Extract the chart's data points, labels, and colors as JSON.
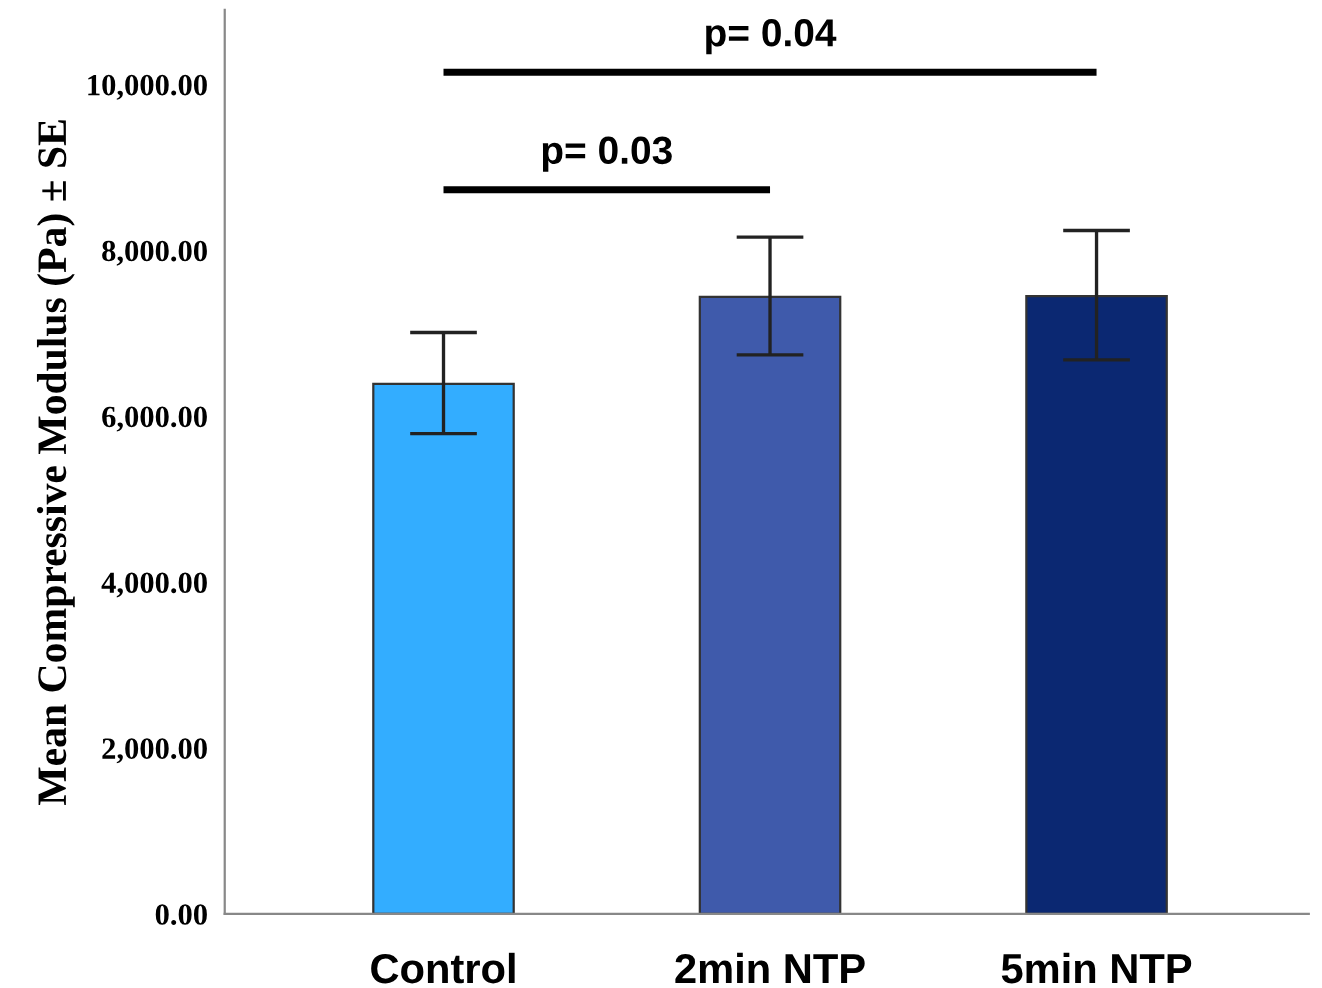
{
  "chart_data": {
    "type": "bar",
    "categories": [
      "Control",
      "2min NTP",
      "5min NTP"
    ],
    "values": [
      6390,
      7440,
      7450
    ],
    "colors": [
      "#33adff",
      "#3f5aab",
      "#0b2872"
    ],
    "errors": [
      [
        5790,
        7010
      ],
      [
        6740,
        8160
      ],
      [
        6680,
        8240
      ]
    ],
    "ylabel": "Mean Compressive Modulus (Pa) ± SE",
    "ylim": [
      0,
      10900
    ],
    "yticks": [
      {
        "value": 0,
        "label": "0.00"
      },
      {
        "value": 2000,
        "label": "2,000.00"
      },
      {
        "value": 4000,
        "label": "4,000.00"
      },
      {
        "value": 6000,
        "label": "6,000.00"
      },
      {
        "value": 8000,
        "label": "8,000.00"
      },
      {
        "value": 10000,
        "label": "10,000.00"
      }
    ],
    "annotations": [
      "p= 0.03",
      "p= 0.04"
    ],
    "grid": false
  }
}
